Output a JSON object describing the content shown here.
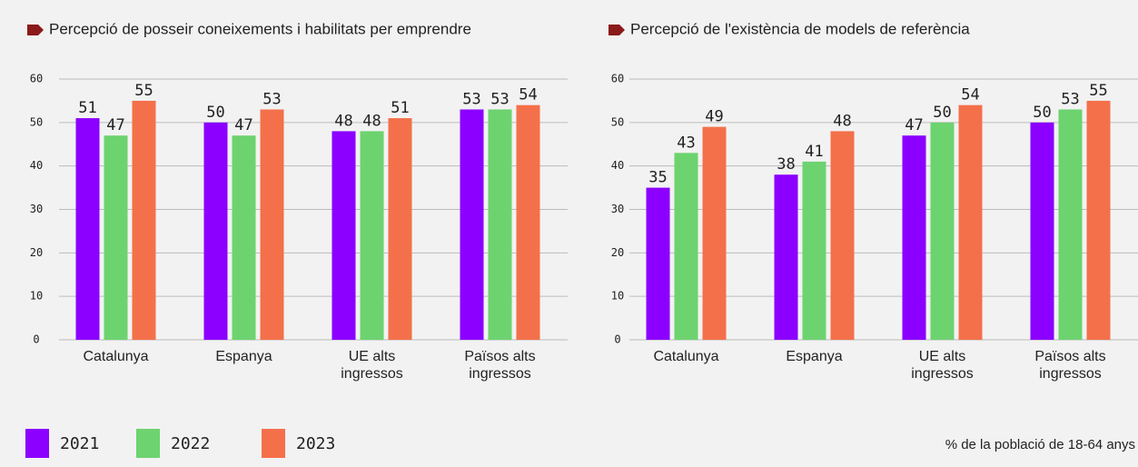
{
  "chart_data": [
    {
      "type": "bar",
      "title": "Percepció de posseir coneixements i habilitats per emprendre",
      "categories": [
        "Catalunya",
        "Espanya",
        "UE alts ingressos",
        "Països alts ingressos"
      ],
      "series": [
        {
          "name": "2021",
          "color": "#8b00ff",
          "values": [
            51,
            50,
            48,
            53
          ]
        },
        {
          "name": "2022",
          "color": "#6dd36f",
          "values": [
            47,
            47,
            48,
            53
          ]
        },
        {
          "name": "2023",
          "color": "#f4704a",
          "values": [
            55,
            53,
            51,
            54
          ]
        }
      ],
      "ylim": [
        0,
        60
      ],
      "yticks": [
        0,
        10,
        20,
        30,
        40,
        50,
        60
      ],
      "grid": true
    },
    {
      "type": "bar",
      "title": "Percepció de l'existència de models de referència",
      "categories": [
        "Catalunya",
        "Espanya",
        "UE alts ingressos",
        "Països alts ingressos"
      ],
      "series": [
        {
          "name": "2021",
          "color": "#8b00ff",
          "values": [
            35,
            38,
            47,
            50
          ]
        },
        {
          "name": "2022",
          "color": "#6dd36f",
          "values": [
            43,
            41,
            50,
            53
          ]
        },
        {
          "name": "2023",
          "color": "#f4704a",
          "values": [
            49,
            48,
            54,
            55
          ]
        }
      ],
      "ylim": [
        0,
        60
      ],
      "yticks": [
        0,
        10,
        20,
        30,
        40,
        50,
        60
      ],
      "grid": true,
      "note": "% de la població de 18-64 anys"
    }
  ]
}
